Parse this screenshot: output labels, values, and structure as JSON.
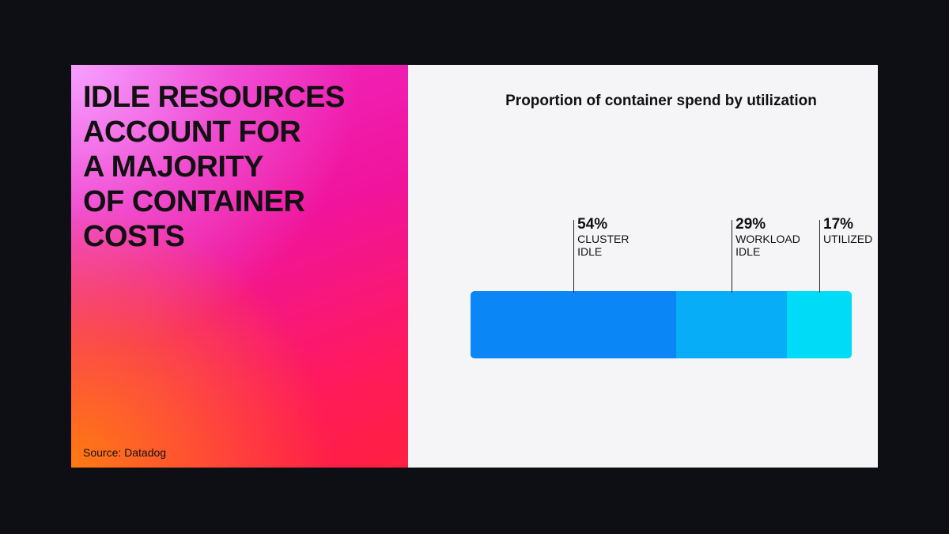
{
  "headline": [
    "IDLE RESOURCES",
    "ACCOUNT FOR",
    "A MAJORITY",
    "OF CONTAINER",
    "COSTS"
  ],
  "source": "Source: Datadog",
  "chart_data": {
    "type": "stacked-bar",
    "title": "Proportion of container spend by utilization",
    "series": [
      {
        "name": "CLUSTER IDLE",
        "color": "#0a86f7",
        "values": [
          54
        ],
        "value_labels": [
          "54%"
        ]
      },
      {
        "name": "WORKLOAD IDLE",
        "color": "#08adf7",
        "values": [
          29
        ],
        "value_labels": [
          "29%"
        ]
      },
      {
        "name": "UTILIZED",
        "color": "#00dcf7",
        "values": [
          17
        ],
        "value_labels": [
          "17%"
        ]
      }
    ]
  }
}
